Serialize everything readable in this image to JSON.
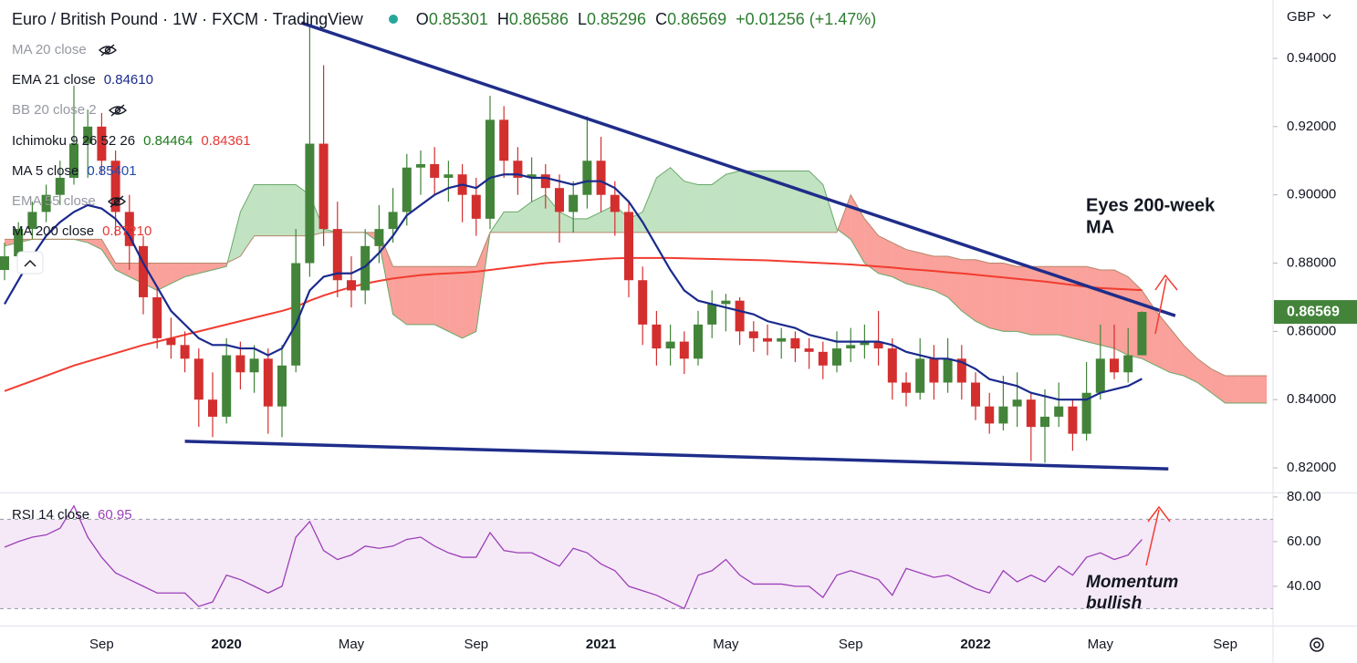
{
  "chart_data": {
    "type": "candlestick",
    "title": "Euro / British Pound · 1W · FXCM · TradingView",
    "ohlc_header": [
      {
        "label": "O",
        "value": {
          "value": 0.85301,
          "label": "0.85301"
        }
      },
      {
        "label": "H",
        "value": {
          "value": 0.86586,
          "label": "0.86586"
        }
      },
      {
        "label": "L",
        "value": {
          "value": 0.85296,
          "label": "0.85296"
        }
      },
      {
        "label": "C",
        "value": {
          "value": 0.86569,
          "label": "0.86569"
        }
      }
    ],
    "change": {
      "value": 0.01256,
      "label": "+0.01256"
    },
    "change_pct": {
      "value": 1.47,
      "label": "(+1.47%)"
    },
    "currency": "GBP",
    "legend": [
      {
        "label": "MA 20 close",
        "hidden": true
      },
      {
        "label": "EMA 21 close",
        "values": [
          {
            "value": 0.8461,
            "label": "0.84610"
          }
        ],
        "colors": [
          "#1a2a8c"
        ]
      },
      {
        "label": "BB 20 close 2",
        "hidden": true
      },
      {
        "label": "Ichimoku 9 26 52 26",
        "values": [
          {
            "value": 0.84464,
            "label": "0.84464"
          },
          {
            "value": 0.84361,
            "label": "0.84361"
          }
        ],
        "colors": [
          "#1b7a1b",
          "#e53935"
        ]
      },
      {
        "label": "MA 5 close",
        "values": [
          {
            "value": 0.85401,
            "label": "0.85401"
          }
        ],
        "colors": [
          "#1e4bb0"
        ]
      },
      {
        "label": "EMA 55 close",
        "hidden": true
      },
      {
        "label": "MA 200 close",
        "values": [
          {
            "value": 0.8721,
            "label": "0.87210"
          }
        ],
        "colors": [
          "#e53935"
        ]
      }
    ],
    "annotations": [
      [
        "Eyes 200-week",
        "MA"
      ],
      [
        "Momentum",
        "bullish"
      ]
    ],
    "ylim": [
      0.8128,
      0.9571
    ],
    "yticks": [
      {
        "value": 0.94,
        "label": "0.94000"
      },
      {
        "value": 0.92,
        "label": "0.92000"
      },
      {
        "value": 0.9,
        "label": "0.90000"
      },
      {
        "value": 0.88,
        "label": "0.88000"
      },
      {
        "value": 0.86,
        "label": "0.86000"
      },
      {
        "value": 0.84,
        "label": "0.84000"
      },
      {
        "value": 0.82,
        "label": "0.82000"
      }
    ],
    "last_price": {
      "value": 0.86569,
      "label": "0.86569"
    },
    "up_color": "#43843a",
    "down_color": "#d32f2f",
    "categories": [
      null,
      null,
      null,
      null,
      null,
      null,
      null,
      "Sep",
      null,
      null,
      null,
      null,
      null,
      null,
      null,
      null,
      "2020",
      null,
      null,
      null,
      null,
      null,
      null,
      null,
      null,
      "May",
      null,
      null,
      null,
      null,
      null,
      null,
      null,
      null,
      "Sep",
      null,
      null,
      null,
      null,
      null,
      null,
      null,
      null,
      "2021",
      null,
      null,
      null,
      null,
      null,
      null,
      null,
      null,
      "May",
      null,
      null,
      null,
      null,
      null,
      null,
      null,
      null,
      "Sep",
      null,
      null,
      null,
      null,
      null,
      null,
      null,
      null,
      "2022",
      null,
      null,
      null,
      null,
      null,
      null,
      null,
      null,
      "May",
      null,
      null,
      null,
      null,
      null,
      null,
      null,
      null,
      "Sep",
      null,
      null,
      null
    ],
    "ohlc": [
      [
        0.878,
        0.886,
        0.875,
        0.882
      ],
      [
        0.882,
        0.892,
        0.88,
        0.89
      ],
      [
        0.89,
        0.898,
        0.887,
        0.895
      ],
      [
        0.895,
        0.903,
        0.892,
        0.9
      ],
      [
        0.9,
        0.91,
        0.897,
        0.905
      ],
      [
        0.905,
        0.932,
        0.903,
        0.915
      ],
      [
        0.915,
        0.925,
        0.905,
        0.92
      ],
      [
        0.92,
        0.924,
        0.906,
        0.91
      ],
      [
        0.91,
        0.913,
        0.888,
        0.895
      ],
      [
        0.895,
        0.9,
        0.878,
        0.885
      ],
      [
        0.885,
        0.888,
        0.865,
        0.87
      ],
      [
        0.87,
        0.873,
        0.855,
        0.858
      ],
      [
        0.858,
        0.864,
        0.852,
        0.856
      ],
      [
        0.856,
        0.86,
        0.848,
        0.852
      ],
      [
        0.852,
        0.855,
        0.832,
        0.84
      ],
      [
        0.84,
        0.848,
        0.829,
        0.835
      ],
      [
        0.835,
        0.858,
        0.833,
        0.853
      ],
      [
        0.853,
        0.857,
        0.843,
        0.848
      ],
      [
        0.848,
        0.856,
        0.842,
        0.852
      ],
      [
        0.852,
        0.855,
        0.83,
        0.838
      ],
      [
        0.838,
        0.856,
        0.829,
        0.85
      ],
      [
        0.85,
        0.89,
        0.848,
        0.88
      ],
      [
        0.88,
        0.95,
        0.876,
        0.915
      ],
      [
        0.915,
        0.938,
        0.885,
        0.89
      ],
      [
        0.89,
        0.898,
        0.87,
        0.875
      ],
      [
        0.875,
        0.882,
        0.867,
        0.872
      ],
      [
        0.872,
        0.89,
        0.868,
        0.885
      ],
      [
        0.885,
        0.897,
        0.88,
        0.89
      ],
      [
        0.89,
        0.902,
        0.886,
        0.895
      ],
      [
        0.895,
        0.912,
        0.891,
        0.908
      ],
      [
        0.908,
        0.913,
        0.9,
        0.909
      ],
      [
        0.909,
        0.914,
        0.9,
        0.905
      ],
      [
        0.905,
        0.91,
        0.898,
        0.906
      ],
      [
        0.906,
        0.909,
        0.892,
        0.9
      ],
      [
        0.9,
        0.905,
        0.888,
        0.893
      ],
      [
        0.893,
        0.929,
        0.89,
        0.922
      ],
      [
        0.922,
        0.926,
        0.905,
        0.91
      ],
      [
        0.91,
        0.914,
        0.9,
        0.905
      ],
      [
        0.905,
        0.911,
        0.898,
        0.906
      ],
      [
        0.906,
        0.909,
        0.896,
        0.902
      ],
      [
        0.902,
        0.906,
        0.886,
        0.895
      ],
      [
        0.895,
        0.904,
        0.889,
        0.9
      ],
      [
        0.9,
        0.923,
        0.896,
        0.91
      ],
      [
        0.91,
        0.917,
        0.895,
        0.9
      ],
      [
        0.9,
        0.904,
        0.888,
        0.895
      ],
      [
        0.895,
        0.898,
        0.87,
        0.875
      ],
      [
        0.875,
        0.879,
        0.856,
        0.862
      ],
      [
        0.862,
        0.866,
        0.85,
        0.855
      ],
      [
        0.855,
        0.862,
        0.85,
        0.857
      ],
      [
        0.857,
        0.86,
        0.8475,
        0.852
      ],
      [
        0.852,
        0.866,
        0.85,
        0.862
      ],
      [
        0.862,
        0.872,
        0.858,
        0.868
      ],
      [
        0.868,
        0.871,
        0.86,
        0.869
      ],
      [
        0.869,
        0.87,
        0.856,
        0.86
      ],
      [
        0.86,
        0.863,
        0.854,
        0.858
      ],
      [
        0.858,
        0.862,
        0.853,
        0.857
      ],
      [
        0.857,
        0.861,
        0.852,
        0.858
      ],
      [
        0.858,
        0.86,
        0.851,
        0.855
      ],
      [
        0.855,
        0.858,
        0.849,
        0.854
      ],
      [
        0.854,
        0.857,
        0.846,
        0.85
      ],
      [
        0.85,
        0.86,
        0.848,
        0.855
      ],
      [
        0.855,
        0.861,
        0.851,
        0.856
      ],
      [
        0.856,
        0.862,
        0.852,
        0.857
      ],
      [
        0.857,
        0.866,
        0.85,
        0.855
      ],
      [
        0.855,
        0.858,
        0.84,
        0.845
      ],
      [
        0.845,
        0.848,
        0.838,
        0.842
      ],
      [
        0.842,
        0.858,
        0.84,
        0.852
      ],
      [
        0.852,
        0.856,
        0.84,
        0.845
      ],
      [
        0.845,
        0.858,
        0.842,
        0.852
      ],
      [
        0.852,
        0.856,
        0.84,
        0.845
      ],
      [
        0.845,
        0.848,
        0.834,
        0.838
      ],
      [
        0.838,
        0.842,
        0.83,
        0.833
      ],
      [
        0.833,
        0.847,
        0.831,
        0.838
      ],
      [
        0.838,
        0.848,
        0.832,
        0.84
      ],
      [
        0.84,
        0.842,
        0.822,
        0.832
      ],
      [
        0.832,
        0.843,
        0.8215,
        0.835
      ],
      [
        0.835,
        0.845,
        0.832,
        0.838
      ],
      [
        0.838,
        0.84,
        0.825,
        0.83
      ],
      [
        0.83,
        0.851,
        0.828,
        0.842
      ],
      [
        0.842,
        0.862,
        0.84,
        0.852
      ],
      [
        0.852,
        0.862,
        0.846,
        0.848
      ],
      [
        0.848,
        0.861,
        0.845,
        0.853
      ],
      [
        0.85301,
        0.86586,
        0.85296,
        0.86569
      ],
      null,
      null,
      null,
      null,
      null,
      null,
      null,
      null,
      null
    ],
    "ema21": {
      "color": "#1a2a8c",
      "values": [
        0.868,
        0.875,
        0.882,
        0.888,
        0.892,
        0.895,
        0.897,
        0.896,
        0.893,
        0.888,
        0.88,
        0.873,
        0.866,
        0.862,
        0.858,
        0.856,
        0.856,
        0.855,
        0.855,
        0.853,
        0.855,
        0.862,
        0.872,
        0.876,
        0.877,
        0.877,
        0.879,
        0.883,
        0.888,
        0.894,
        0.897,
        0.9,
        0.902,
        0.903,
        0.902,
        0.905,
        0.906,
        0.906,
        0.905,
        0.905,
        0.904,
        0.903,
        0.904,
        0.904,
        0.902,
        0.898,
        0.892,
        0.885,
        0.878,
        0.872,
        0.869,
        0.868,
        0.867,
        0.866,
        0.865,
        0.863,
        0.862,
        0.861,
        0.859,
        0.858,
        0.857,
        0.857,
        0.857,
        0.857,
        0.856,
        0.854,
        0.853,
        0.852,
        0.852,
        0.851,
        0.849,
        0.846,
        0.845,
        0.844,
        0.842,
        0.841,
        0.84,
        0.84,
        0.84,
        0.842,
        0.843,
        0.844,
        0.8461,
        null,
        null,
        null,
        null,
        null,
        null,
        null,
        null,
        null
      ]
    },
    "ma200": {
      "color": "#f23c30",
      "values": [
        0.8425,
        0.844,
        0.8455,
        0.847,
        0.8485,
        0.85,
        0.8512,
        0.8524,
        0.8536,
        0.8548,
        0.856,
        0.857,
        0.858,
        0.859,
        0.86,
        0.861,
        0.862,
        0.863,
        0.864,
        0.865,
        0.866,
        0.8672,
        0.869,
        0.8705,
        0.8718,
        0.873,
        0.874,
        0.8748,
        0.8755,
        0.876,
        0.8765,
        0.8768,
        0.877,
        0.8772,
        0.8775,
        0.878,
        0.8785,
        0.879,
        0.8795,
        0.88,
        0.8803,
        0.8806,
        0.8809,
        0.8812,
        0.8814,
        0.8815,
        0.8815,
        0.8815,
        0.8815,
        0.8814,
        0.8813,
        0.8812,
        0.8811,
        0.881,
        0.8809,
        0.8808,
        0.8806,
        0.8804,
        0.8802,
        0.88,
        0.8798,
        0.8796,
        0.8793,
        0.879,
        0.8787,
        0.8783,
        0.878,
        0.8777,
        0.8773,
        0.877,
        0.8766,
        0.8762,
        0.8758,
        0.8754,
        0.875,
        0.8746,
        0.8741,
        0.8736,
        0.8731,
        0.8727,
        0.8725,
        0.8723,
        0.8721,
        null,
        null,
        null,
        null,
        null,
        null,
        null,
        null,
        null
      ]
    },
    "ichimoku": {
      "colors": [
        "rgba(76,175,80,0.35)",
        "rgba(244,67,54,0.5)"
      ],
      "line_colors": [
        "#6aa86a",
        "#b5876a"
      ],
      "span_a": [
        0.885,
        0.886,
        0.887,
        0.887,
        0.887,
        0.887,
        0.886,
        0.884,
        0.878,
        0.876,
        0.874,
        0.872,
        0.874,
        0.876,
        0.877,
        0.878,
        0.879,
        0.895,
        0.903,
        0.903,
        0.903,
        0.903,
        0.9,
        0.89,
        0.889,
        0.889,
        0.889,
        0.886,
        0.865,
        0.862,
        0.862,
        0.862,
        0.86,
        0.858,
        0.86,
        0.889,
        0.895,
        0.895,
        0.898,
        0.9,
        0.895,
        0.893,
        0.893,
        0.895,
        0.897,
        0.893,
        0.895,
        0.905,
        0.908,
        0.904,
        0.903,
        0.903,
        0.906,
        0.907,
        0.907,
        0.907,
        0.907,
        0.907,
        0.907,
        0.903,
        0.89,
        0.887,
        0.88,
        0.877,
        0.876,
        0.874,
        0.873,
        0.872,
        0.87,
        0.866,
        0.863,
        0.861,
        0.86,
        0.86,
        0.859,
        0.859,
        0.859,
        0.858,
        0.857,
        0.856,
        0.855,
        0.853,
        0.852,
        0.85,
        0.848,
        0.847,
        0.845,
        0.842,
        0.839,
        0.839,
        0.839,
        0.839
      ],
      "span_b": [
        0.887,
        0.887,
        0.887,
        0.887,
        0.887,
        0.887,
        0.887,
        0.887,
        0.88,
        0.88,
        0.88,
        0.88,
        0.88,
        0.88,
        0.88,
        0.88,
        0.88,
        0.882,
        0.888,
        0.888,
        0.888,
        0.888,
        0.888,
        0.889,
        0.889,
        0.889,
        0.889,
        0.889,
        0.879,
        0.879,
        0.879,
        0.879,
        0.879,
        0.879,
        0.879,
        0.889,
        0.889,
        0.889,
        0.889,
        0.889,
        0.889,
        0.889,
        0.889,
        0.889,
        0.889,
        0.889,
        0.889,
        0.889,
        0.889,
        0.889,
        0.889,
        0.889,
        0.889,
        0.889,
        0.889,
        0.889,
        0.889,
        0.889,
        0.889,
        0.889,
        0.889,
        0.9,
        0.893,
        0.888,
        0.886,
        0.884,
        0.883,
        0.882,
        0.882,
        0.881,
        0.881,
        0.88,
        0.88,
        0.879,
        0.879,
        0.879,
        0.879,
        0.879,
        0.879,
        0.878,
        0.878,
        0.876,
        0.872,
        0.866,
        0.861,
        0.856,
        0.852,
        0.849,
        0.847,
        0.847,
        0.847,
        0.847
      ]
    },
    "trendlines": [
      {
        "color": "#1f2d8a",
        "x": [
          21.4,
          84.4
        ],
        "values": [
          0.9504,
          0.8646
        ]
      },
      {
        "color": "#1f2d8a",
        "x": [
          13,
          83.9
        ],
        "values": [
          0.8278,
          0.8197
        ]
      }
    ],
    "rsi": {
      "label": "RSI 14 close",
      "last": 60.95,
      "color": "#9c3fb8",
      "ylim": [
        22.4,
        81.6
      ],
      "band": [
        70,
        30
      ],
      "yticks": [
        {
          "value": 80,
          "label": "80.00"
        },
        {
          "value": 60,
          "label": "60.00"
        },
        {
          "value": 40,
          "label": "40.00"
        }
      ],
      "values": [
        57.5,
        60,
        62,
        63,
        66,
        76,
        62,
        53,
        46,
        43,
        40,
        37,
        37,
        37,
        31,
        33,
        45,
        43,
        40,
        37,
        40,
        62,
        69,
        56,
        52,
        54,
        58,
        57,
        58,
        61,
        62,
        58,
        55,
        53,
        53,
        64,
        56,
        55,
        55,
        52,
        49,
        57,
        55,
        50,
        47,
        40,
        38,
        36,
        33,
        30,
        45,
        47,
        52,
        45,
        41,
        41,
        41,
        40,
        40,
        35,
        45,
        47,
        45,
        43,
        36,
        48,
        46,
        44,
        45,
        42,
        39,
        37,
        47,
        42,
        45,
        42,
        49,
        45,
        53,
        55,
        52,
        54,
        60.95,
        null,
        null,
        null,
        null,
        null,
        null,
        null,
        null,
        null
      ]
    }
  }
}
